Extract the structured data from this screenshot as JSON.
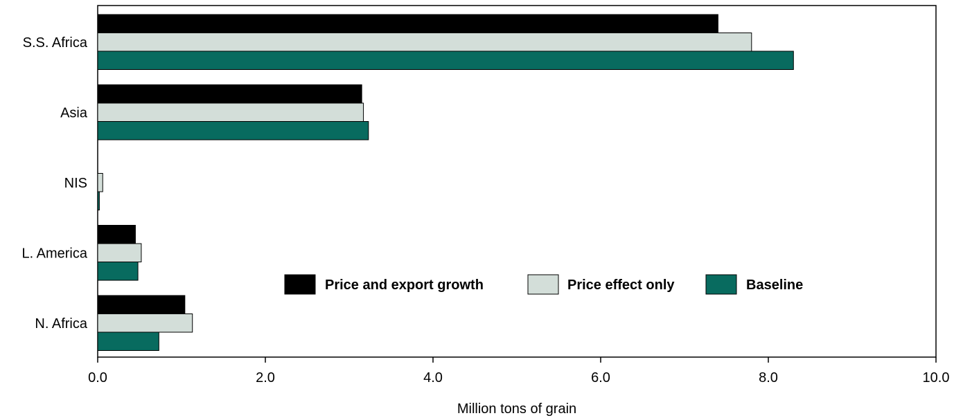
{
  "chart_data": {
    "type": "bar",
    "orientation": "horizontal",
    "categories": [
      "S.S. Africa",
      "Asia",
      "NIS",
      "L. America",
      "N. Africa"
    ],
    "series": [
      {
        "name": "Price and export growth",
        "color": "#000000",
        "values": [
          7.4,
          3.15,
          0.0,
          0.45,
          1.04
        ]
      },
      {
        "name": "Price effect only",
        "color": "#d3ded9",
        "values": [
          7.8,
          3.17,
          0.06,
          0.52,
          1.13
        ]
      },
      {
        "name": "Baseline",
        "color": "#086b5f",
        "values": [
          8.3,
          3.23,
          0.02,
          0.48,
          0.73
        ]
      }
    ],
    "xlabel": "Million tons of grain",
    "ylabel": "",
    "xlim": [
      0,
      10
    ],
    "xticks": [
      "0.0",
      "2.0",
      "4.0",
      "6.0",
      "8.0",
      "10.0"
    ],
    "grid": false,
    "legend_position": "inside-lower-center"
  }
}
